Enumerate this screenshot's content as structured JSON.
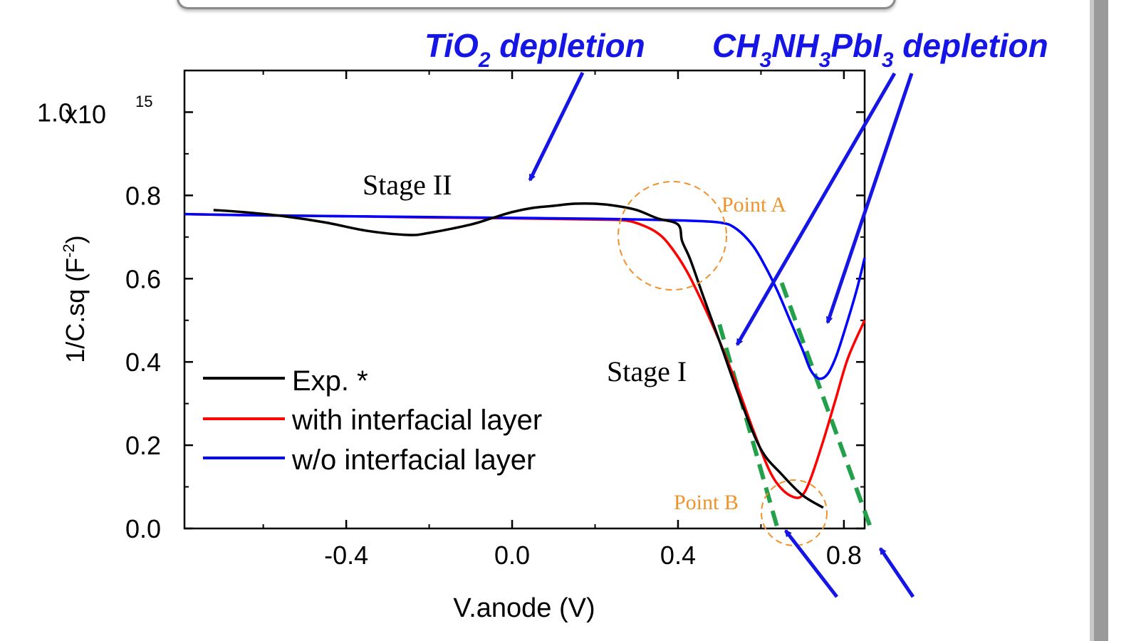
{
  "chart_data": {
    "type": "line",
    "xlabel": "V.anode (V)",
    "ylabel": "1/C.sq (F-2)",
    "ylabel_base": "1/C.sq (F",
    "ylabel_exp": "-2",
    "ylabel_close": ")",
    "y_multiplier_label": "x10",
    "y_multiplier_exp": "15",
    "xlim": [
      -0.79,
      0.85
    ],
    "ylim": [
      0.0,
      1.1
    ],
    "x_ticks": [
      -0.4,
      0.0,
      0.4,
      0.8
    ],
    "x_tick_labels": [
      "-0.4",
      "0.0",
      "0.4",
      "0.8"
    ],
    "y_ticks": [
      0.0,
      0.2,
      0.4,
      0.6,
      0.8,
      1.0
    ],
    "y_tick_labels": [
      "0.0",
      "0.2",
      "0.4",
      "0.6",
      "0.8",
      "1.0"
    ],
    "legend_placement": "lower-left",
    "series": [
      {
        "name": "Exp. *",
        "color": "#000000",
        "x": [
          -0.72,
          -0.65,
          -0.55,
          -0.45,
          -0.35,
          -0.25,
          -0.2,
          -0.1,
          -0.05,
          0.0,
          0.05,
          0.1,
          0.15,
          0.2,
          0.25,
          0.3,
          0.35,
          0.4,
          0.41,
          0.43,
          0.46,
          0.5,
          0.55,
          0.6,
          0.65,
          0.7,
          0.75
        ],
        "y": [
          0.765,
          0.76,
          0.75,
          0.735,
          0.715,
          0.705,
          0.71,
          0.73,
          0.745,
          0.76,
          0.77,
          0.775,
          0.78,
          0.78,
          0.775,
          0.765,
          0.745,
          0.73,
          0.69,
          0.645,
          0.56,
          0.45,
          0.31,
          0.19,
          0.13,
          0.08,
          0.05
        ]
      },
      {
        "name": "with interfacial layer",
        "color": "#ff0000",
        "x": [
          -0.79,
          -0.6,
          -0.4,
          -0.2,
          0.0,
          0.2,
          0.27,
          0.31,
          0.35,
          0.38,
          0.42,
          0.46,
          0.5,
          0.54,
          0.58,
          0.62,
          0.65,
          0.68,
          0.7,
          0.72,
          0.75,
          0.78,
          0.81,
          0.85
        ],
        "y": [
          0.755,
          0.752,
          0.75,
          0.747,
          0.745,
          0.742,
          0.74,
          0.73,
          0.71,
          0.68,
          0.62,
          0.54,
          0.45,
          0.35,
          0.24,
          0.14,
          0.095,
          0.075,
          0.08,
          0.12,
          0.21,
          0.31,
          0.41,
          0.5
        ]
      },
      {
        "name": "w/o interfacial layer",
        "color": "#0000ff",
        "x": [
          -0.79,
          -0.6,
          -0.4,
          -0.2,
          0.0,
          0.2,
          0.4,
          0.5,
          0.54,
          0.58,
          0.61,
          0.64,
          0.67,
          0.7,
          0.72,
          0.74,
          0.76,
          0.78,
          0.8,
          0.83,
          0.85
        ],
        "y": [
          0.755,
          0.752,
          0.75,
          0.748,
          0.746,
          0.744,
          0.74,
          0.735,
          0.72,
          0.68,
          0.63,
          0.57,
          0.5,
          0.43,
          0.38,
          0.36,
          0.37,
          0.41,
          0.47,
          0.57,
          0.65
        ]
      }
    ],
    "fit_lines": [
      {
        "color": "#22a04a",
        "x": [
          0.5,
          0.64
        ],
        "y": [
          0.49,
          0.0
        ]
      },
      {
        "color": "#22a04a",
        "x": [
          0.65,
          0.865
        ],
        "y": [
          0.59,
          0.0
        ]
      }
    ],
    "annotations": {
      "stage_ii": "Stage II",
      "stage_i": "Stage I",
      "point_a": "Point A",
      "point_b": "Point B",
      "tio2_pre": "TiO",
      "tio2_sub": "2",
      "tio2_post": " depletion",
      "ch3_1": "CH",
      "ch3_2": "3",
      "ch3_3": "NH",
      "ch3_4": "3",
      "ch3_5": "PbI",
      "ch3_6": "3",
      "ch3_7": " depletion"
    },
    "colors": {
      "annotation_blue": "#1515e6",
      "circle_orange": "#f0922a",
      "point_label_orange": "#f0922a"
    }
  }
}
